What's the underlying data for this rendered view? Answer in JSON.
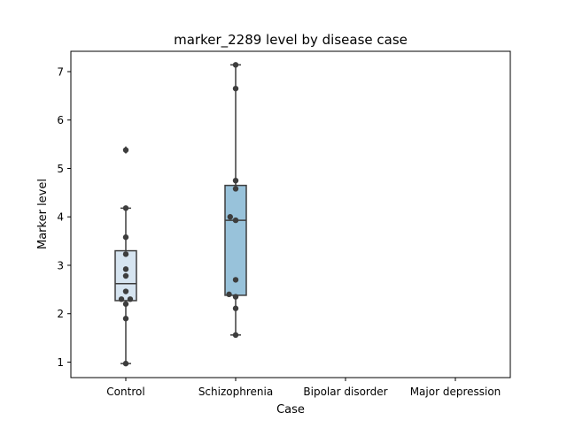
{
  "chart_data": {
    "type": "box",
    "title": "marker_2289 level by disease case",
    "xlabel": "Case",
    "ylabel": "Marker level",
    "categories": [
      "Control",
      "Schizophrenia",
      "Bipolar disorder",
      "Major depression"
    ],
    "ylim": [
      0.68,
      7.42
    ],
    "yticks": [
      1,
      2,
      3,
      4,
      5,
      6,
      7
    ],
    "grid": false,
    "boxes": [
      {
        "category": "Control",
        "q1": 2.27,
        "median": 2.62,
        "q3": 3.3,
        "whisker_low": 0.97,
        "whisker_high": 4.18,
        "fliers": [
          5.38
        ],
        "color": "#d6e4f0"
      },
      {
        "category": "Schizophrenia",
        "q1": 2.38,
        "median": 3.93,
        "q3": 4.65,
        "whisker_low": 1.56,
        "whisker_high": 7.14,
        "fliers": [],
        "color": "#98c2da"
      }
    ],
    "points": [
      {
        "category": "Control",
        "values": [
          0.97,
          1.9,
          2.2,
          2.3,
          2.3,
          2.46,
          2.78,
          2.92,
          3.23,
          3.58,
          4.18,
          5.38
        ],
        "offsets": [
          0,
          0,
          0,
          -0.04,
          0.04,
          0,
          0,
          0,
          0,
          0,
          0,
          0
        ]
      },
      {
        "category": "Schizophrenia",
        "values": [
          1.56,
          2.11,
          2.35,
          2.4,
          2.7,
          3.93,
          4.0,
          4.58,
          4.75,
          6.65,
          7.14
        ],
        "offsets": [
          0,
          0,
          0,
          -0.06,
          0,
          0,
          -0.05,
          0,
          0,
          0,
          0
        ]
      }
    ]
  }
}
